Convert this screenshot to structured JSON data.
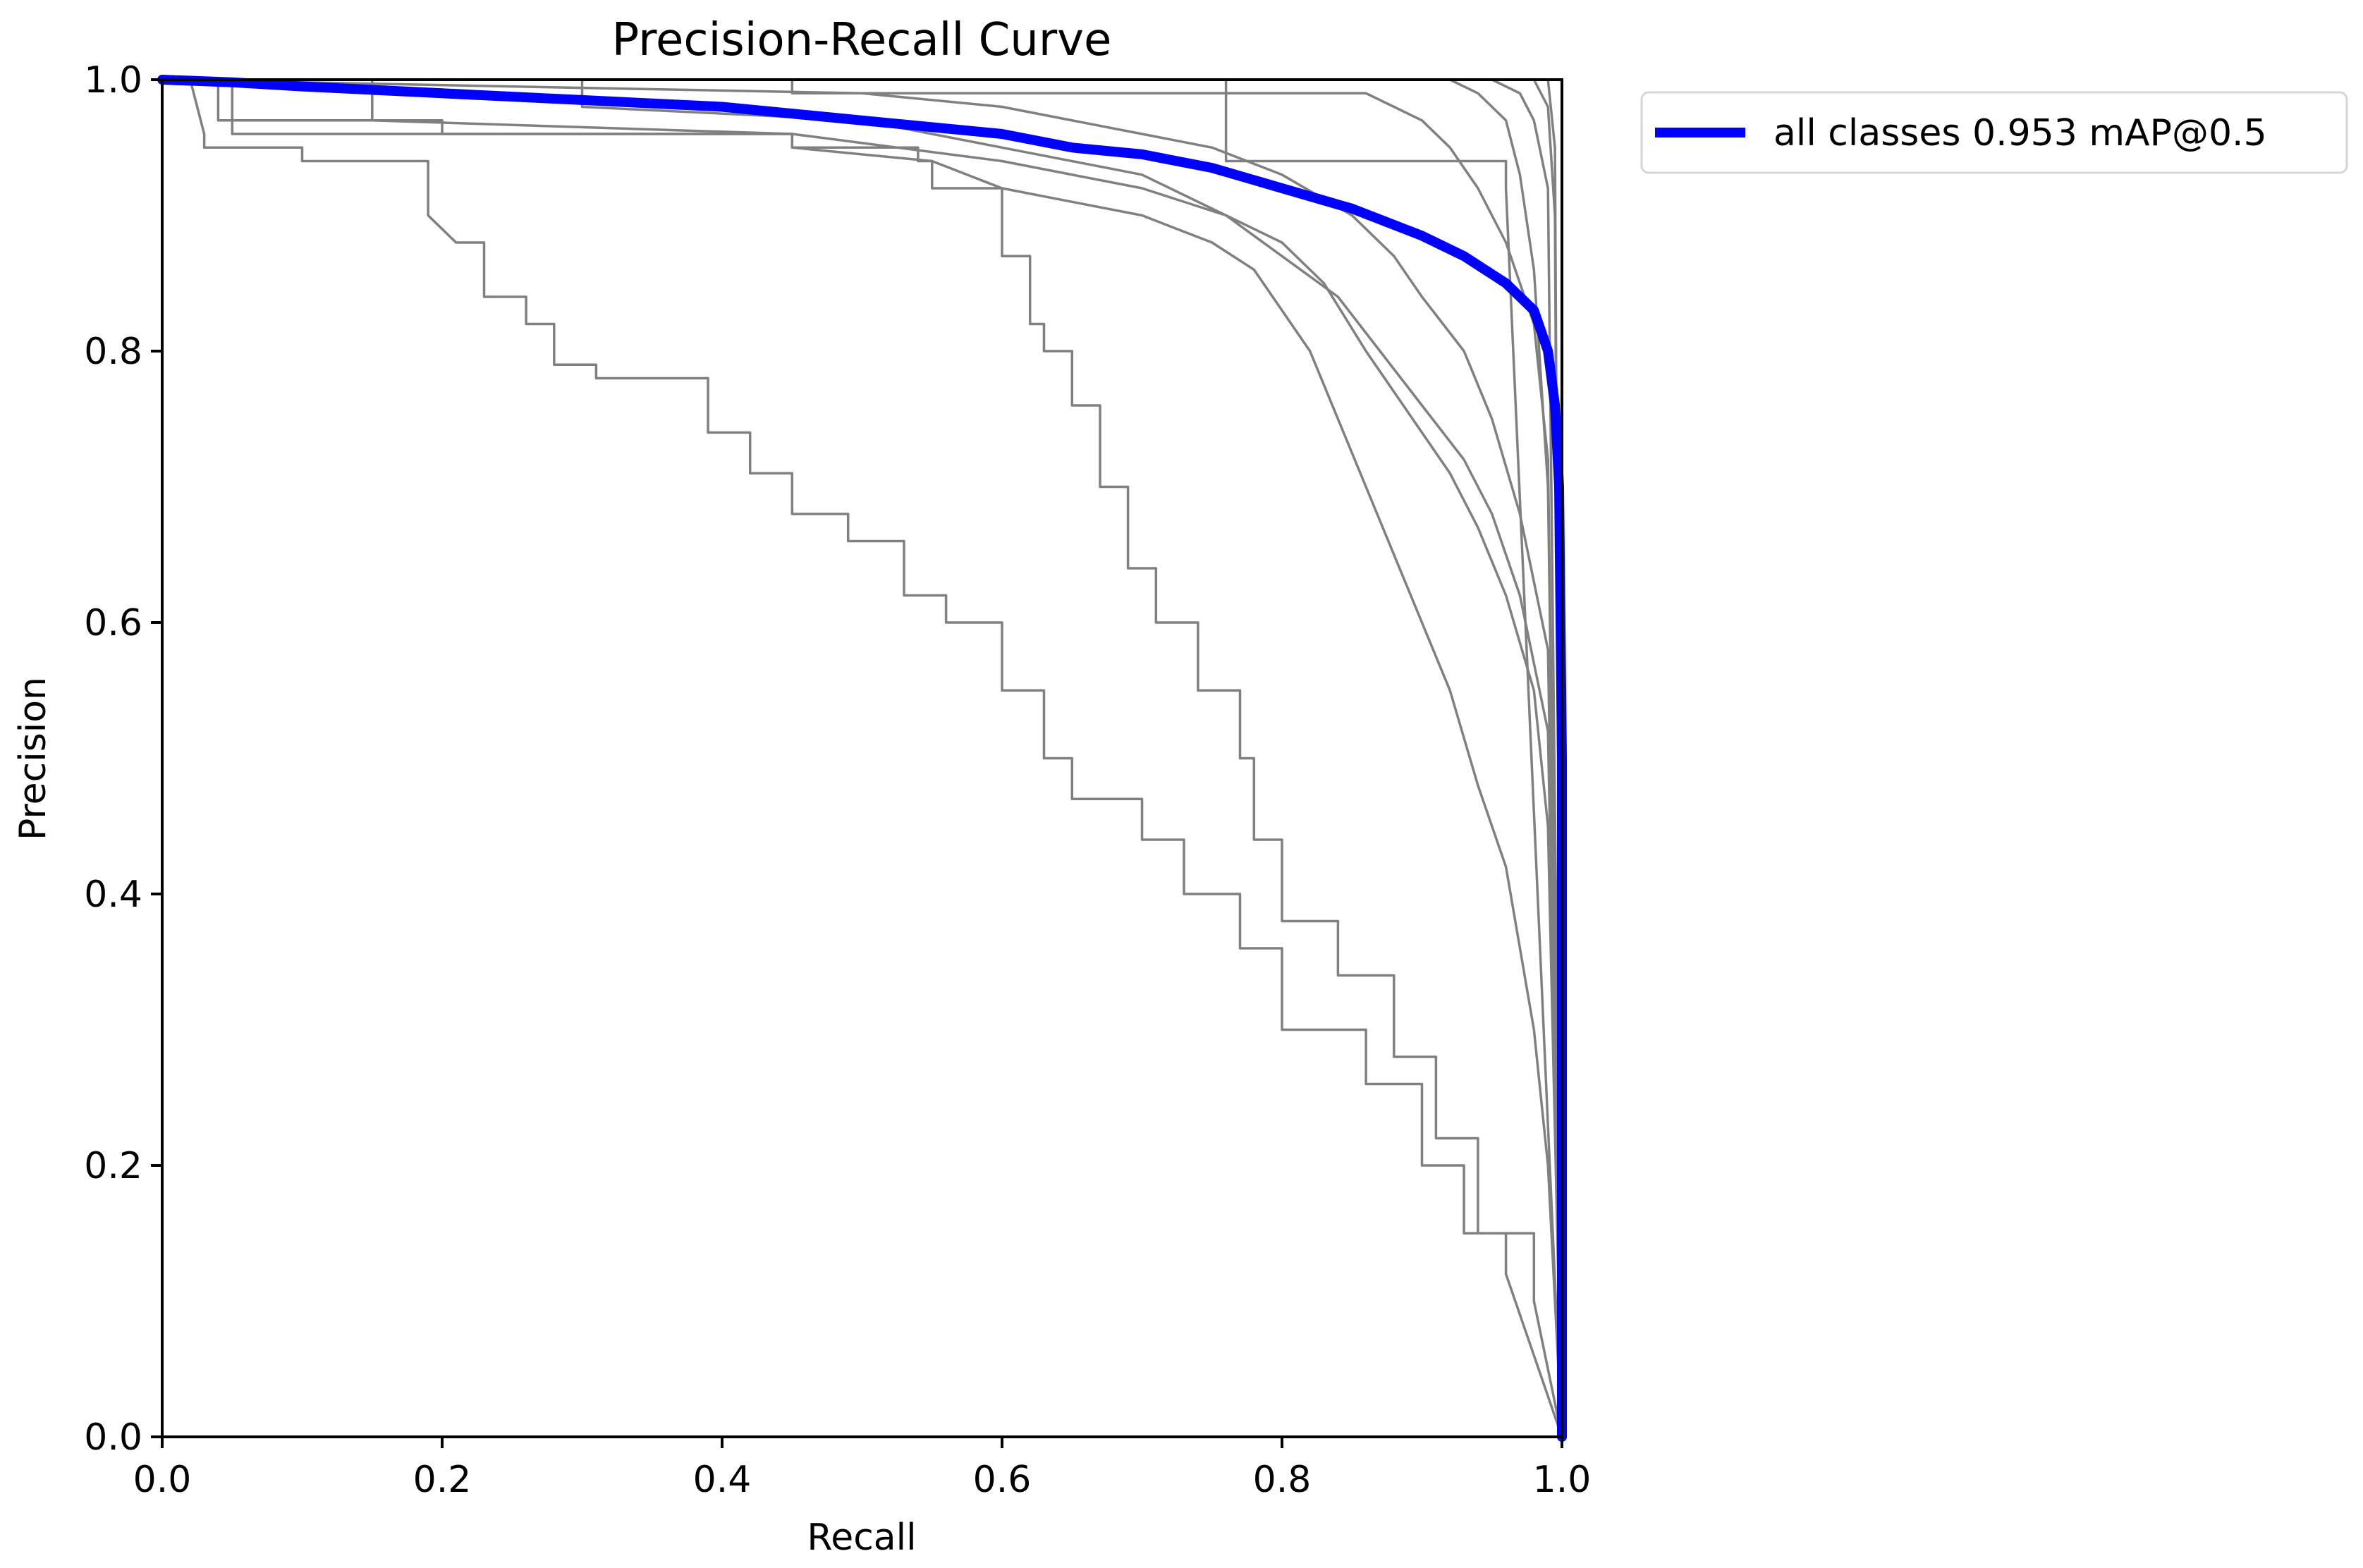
{
  "chart_data": {
    "type": "line",
    "title": "Precision-Recall Curve",
    "xlabel": "Recall",
    "ylabel": "Precision",
    "xlim": [
      0.0,
      1.0
    ],
    "ylim": [
      0.0,
      1.0
    ],
    "xticks": [
      "0.0",
      "0.2",
      "0.4",
      "0.6",
      "0.8",
      "1.0"
    ],
    "yticks": [
      "0.0",
      "0.2",
      "0.4",
      "0.6",
      "0.8",
      "1.0"
    ],
    "grid": false,
    "legend_position": "outside-top-right",
    "colors": {
      "mean": "#0000ff",
      "per_class": "#808080"
    },
    "mean_series": {
      "name": "all classes 0.953 mAP@0.5",
      "x": [
        0.0,
        0.05,
        0.1,
        0.2,
        0.3,
        0.4,
        0.5,
        0.6,
        0.65,
        0.7,
        0.75,
        0.8,
        0.85,
        0.9,
        0.93,
        0.96,
        0.98,
        0.99,
        0.995,
        0.998,
        1.0,
        1.0
      ],
      "y": [
        1.0,
        0.998,
        0.995,
        0.99,
        0.985,
        0.98,
        0.97,
        0.96,
        0.95,
        0.945,
        0.935,
        0.92,
        0.905,
        0.885,
        0.87,
        0.85,
        0.83,
        0.8,
        0.76,
        0.7,
        0.5,
        0.0
      ]
    },
    "series": [
      {
        "x": [
          0.0,
          0.02,
          0.03,
          0.03,
          0.1,
          0.1,
          0.19,
          0.19,
          0.21,
          0.23,
          0.23,
          0.26,
          0.26,
          0.28,
          0.28,
          0.31,
          0.31,
          0.39,
          0.39,
          0.42,
          0.42,
          0.45,
          0.45,
          0.49,
          0.49,
          0.53,
          0.53,
          0.56,
          0.56,
          0.6,
          0.6,
          0.63,
          0.63,
          0.65,
          0.65,
          0.7,
          0.7,
          0.73,
          0.73,
          0.77,
          0.77,
          0.8,
          0.8,
          0.86,
          0.86,
          0.9,
          0.9,
          0.93,
          0.93,
          0.96,
          0.96,
          1.0
        ],
        "y": [
          1.0,
          1.0,
          0.96,
          0.95,
          0.95,
          0.94,
          0.94,
          0.9,
          0.88,
          0.88,
          0.84,
          0.84,
          0.82,
          0.82,
          0.79,
          0.79,
          0.78,
          0.78,
          0.74,
          0.74,
          0.71,
          0.71,
          0.68,
          0.68,
          0.66,
          0.66,
          0.62,
          0.62,
          0.6,
          0.6,
          0.55,
          0.55,
          0.5,
          0.5,
          0.47,
          0.47,
          0.44,
          0.44,
          0.4,
          0.4,
          0.36,
          0.36,
          0.3,
          0.3,
          0.26,
          0.26,
          0.2,
          0.2,
          0.15,
          0.15,
          0.12,
          0.0
        ]
      },
      {
        "x": [
          0.0,
          0.04,
          0.04,
          0.2,
          0.2,
          0.45,
          0.45,
          0.54,
          0.54,
          0.55,
          0.55,
          0.6,
          0.6,
          0.62,
          0.62,
          0.63,
          0.63,
          0.65,
          0.65,
          0.67,
          0.67,
          0.69,
          0.69,
          0.71,
          0.71,
          0.74,
          0.74,
          0.77,
          0.77,
          0.78,
          0.78,
          0.8,
          0.8,
          0.84,
          0.84,
          0.88,
          0.88,
          0.91,
          0.91,
          0.94,
          0.94,
          0.98,
          0.98,
          1.0
        ],
        "y": [
          1.0,
          1.0,
          0.97,
          0.97,
          0.96,
          0.96,
          0.95,
          0.95,
          0.94,
          0.94,
          0.92,
          0.92,
          0.87,
          0.87,
          0.82,
          0.82,
          0.8,
          0.8,
          0.76,
          0.76,
          0.7,
          0.7,
          0.64,
          0.64,
          0.6,
          0.6,
          0.55,
          0.55,
          0.5,
          0.5,
          0.44,
          0.44,
          0.38,
          0.38,
          0.34,
          0.34,
          0.28,
          0.28,
          0.22,
          0.22,
          0.15,
          0.15,
          0.1,
          0.0
        ]
      },
      {
        "x": [
          0.0,
          0.05,
          0.05,
          0.45,
          0.45,
          0.55,
          0.6,
          0.65,
          0.7,
          0.75,
          0.78,
          0.8,
          0.82,
          0.84,
          0.86,
          0.88,
          0.9,
          0.92,
          0.94,
          0.96,
          0.98,
          0.99,
          1.0
        ],
        "y": [
          1.0,
          1.0,
          0.96,
          0.96,
          0.95,
          0.94,
          0.92,
          0.91,
          0.9,
          0.88,
          0.86,
          0.83,
          0.8,
          0.75,
          0.7,
          0.65,
          0.6,
          0.55,
          0.48,
          0.42,
          0.3,
          0.2,
          0.0
        ]
      },
      {
        "x": [
          0.0,
          0.15,
          0.15,
          0.45,
          0.6,
          0.7,
          0.76,
          0.8,
          0.83,
          0.86,
          0.88,
          0.9,
          0.92,
          0.94,
          0.96,
          0.98,
          0.99,
          1.0
        ],
        "y": [
          1.0,
          1.0,
          0.97,
          0.96,
          0.94,
          0.92,
          0.9,
          0.88,
          0.85,
          0.8,
          0.77,
          0.74,
          0.71,
          0.67,
          0.62,
          0.55,
          0.45,
          0.0
        ]
      },
      {
        "x": [
          0.0,
          0.3,
          0.3,
          0.5,
          0.6,
          0.7,
          0.76,
          0.8,
          0.84,
          0.87,
          0.9,
          0.93,
          0.95,
          0.97,
          0.99,
          1.0
        ],
        "y": [
          1.0,
          1.0,
          0.98,
          0.97,
          0.95,
          0.93,
          0.9,
          0.87,
          0.84,
          0.8,
          0.76,
          0.72,
          0.68,
          0.62,
          0.52,
          0.0
        ]
      },
      {
        "x": [
          0.0,
          0.5,
          0.6,
          0.7,
          0.75,
          0.8,
          0.85,
          0.88,
          0.9,
          0.93,
          0.95,
          0.97,
          0.99,
          1.0
        ],
        "y": [
          1.0,
          0.99,
          0.98,
          0.96,
          0.95,
          0.93,
          0.9,
          0.87,
          0.84,
          0.8,
          0.75,
          0.68,
          0.58,
          0.0
        ]
      },
      {
        "x": [
          0.0,
          0.45,
          0.45,
          0.86,
          0.88,
          0.9,
          0.92,
          0.94,
          0.96,
          0.98,
          0.99,
          1.0
        ],
        "y": [
          1.0,
          1.0,
          0.99,
          0.99,
          0.98,
          0.97,
          0.95,
          0.92,
          0.88,
          0.82,
          0.72,
          0.0
        ]
      },
      {
        "x": [
          0.0,
          0.92,
          0.94,
          0.96,
          0.97,
          0.98,
          0.99,
          1.0
        ],
        "y": [
          1.0,
          1.0,
          0.99,
          0.97,
          0.93,
          0.86,
          0.7,
          0.0
        ]
      },
      {
        "x": [
          0.0,
          0.76,
          0.76,
          0.96,
          0.96,
          1.0
        ],
        "y": [
          1.0,
          1.0,
          0.94,
          0.94,
          0.92,
          0.0
        ]
      },
      {
        "x": [
          0.0,
          0.95,
          0.97,
          0.98,
          0.99,
          1.0
        ],
        "y": [
          1.0,
          1.0,
          0.99,
          0.97,
          0.92,
          0.0
        ]
      },
      {
        "x": [
          0.0,
          0.98,
          0.99,
          0.995,
          1.0
        ],
        "y": [
          1.0,
          1.0,
          0.98,
          0.9,
          0.0
        ]
      },
      {
        "x": [
          0.0,
          0.99,
          0.995,
          1.0
        ],
        "y": [
          1.0,
          1.0,
          0.95,
          0.0
        ]
      }
    ]
  }
}
